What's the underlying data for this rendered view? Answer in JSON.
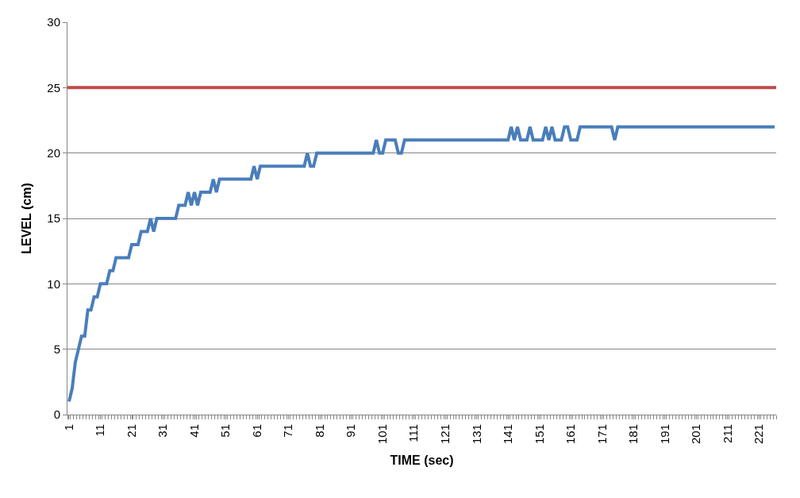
{
  "chart_data": {
    "type": "line",
    "xlabel": "TIME (sec)",
    "ylabel": "LEVEL (cm)",
    "categories": [
      "1",
      null,
      null,
      null,
      null,
      null,
      null,
      null,
      null,
      null,
      "11",
      null,
      null,
      null,
      null,
      null,
      null,
      null,
      null,
      null,
      "21",
      null,
      null,
      null,
      null,
      null,
      null,
      null,
      null,
      null,
      "31",
      null,
      null,
      null,
      null,
      null,
      null,
      null,
      null,
      null,
      "41",
      null,
      null,
      null,
      null,
      null,
      null,
      null,
      null,
      null,
      "51",
      null,
      null,
      null,
      null,
      null,
      null,
      null,
      null,
      null,
      "61",
      null,
      null,
      null,
      null,
      null,
      null,
      null,
      null,
      null,
      "71",
      null,
      null,
      null,
      null,
      null,
      null,
      null,
      null,
      null,
      "81",
      null,
      null,
      null,
      null,
      null,
      null,
      null,
      null,
      null,
      "91",
      null,
      null,
      null,
      null,
      null,
      null,
      null,
      null,
      null,
      "101",
      null,
      null,
      null,
      null,
      null,
      null,
      null,
      null,
      null,
      "111",
      null,
      null,
      null,
      null,
      null,
      null,
      null,
      null,
      null,
      "121",
      null,
      null,
      null,
      null,
      null,
      null,
      null,
      null,
      null,
      "131",
      null,
      null,
      null,
      null,
      null,
      null,
      null,
      null,
      null,
      "141",
      null,
      null,
      null,
      null,
      null,
      null,
      null,
      null,
      null,
      "151",
      null,
      null,
      null,
      null,
      null,
      null,
      null,
      null,
      null,
      "161",
      null,
      null,
      null,
      null,
      null,
      null,
      null,
      null,
      null,
      "171",
      null,
      null,
      null,
      null,
      null,
      null,
      null,
      null,
      null,
      "181",
      null,
      null,
      null,
      null,
      null,
      null,
      null,
      null,
      null,
      "191",
      null,
      null,
      null,
      null,
      null,
      null,
      null,
      null,
      null,
      "201",
      null,
      null,
      null,
      null,
      null,
      null,
      null,
      null,
      null,
      "211",
      null,
      null,
      null,
      null,
      null,
      null,
      null,
      null,
      null,
      "221",
      null,
      null,
      null,
      null,
      null
    ],
    "series": [
      {
        "color": "#4a7ebb",
        "values": [
          1,
          2,
          4,
          5,
          6,
          6,
          8,
          8,
          9,
          9,
          10,
          10,
          10,
          11,
          11,
          12,
          12,
          12,
          12,
          12,
          13,
          13,
          13,
          14,
          14,
          14,
          15,
          14,
          15,
          15,
          15,
          15,
          15,
          15,
          15,
          16,
          16,
          16,
          17,
          16,
          17,
          16,
          17,
          17,
          17,
          17,
          18,
          17,
          18,
          18,
          18,
          18,
          18,
          18,
          18,
          18,
          18,
          18,
          18,
          19,
          18,
          19,
          19,
          19,
          19,
          19,
          19,
          19,
          19,
          19,
          19,
          19,
          19,
          19,
          19,
          19,
          20,
          19,
          19,
          20,
          20,
          20,
          20,
          20,
          20,
          20,
          20,
          20,
          20,
          20,
          20,
          20,
          20,
          20,
          20,
          20,
          20,
          20,
          21,
          20,
          20,
          21,
          21,
          21,
          21,
          20,
          20,
          21,
          21,
          21,
          21,
          21,
          21,
          21,
          21,
          21,
          21,
          21,
          21,
          21,
          21,
          21,
          21,
          21,
          21,
          21,
          21,
          21,
          21,
          21,
          21,
          21,
          21,
          21,
          21,
          21,
          21,
          21,
          21,
          21,
          21,
          22,
          21,
          22,
          21,
          21,
          21,
          22,
          21,
          21,
          21,
          21,
          22,
          21,
          22,
          21,
          21,
          21,
          22,
          22,
          21,
          21,
          21,
          22,
          22,
          22,
          22,
          22,
          22,
          22,
          22,
          22,
          22,
          22,
          21,
          22,
          22,
          22,
          22,
          22,
          22,
          22,
          22,
          22,
          22,
          22,
          22,
          22,
          22,
          22,
          22,
          22,
          22,
          22,
          22,
          22,
          22,
          22,
          22,
          22,
          22,
          22,
          22,
          22,
          22,
          22,
          22,
          22,
          22,
          22,
          22,
          22,
          22,
          22,
          22,
          22,
          22,
          22,
          22,
          22,
          22,
          22,
          22,
          22,
          22,
          22
        ]
      }
    ],
    "ref_lines": [
      {
        "axis": "y",
        "value": 25,
        "color": "#be4b48"
      }
    ],
    "ylim": [
      0,
      30
    ],
    "yticks": [
      0,
      5,
      10,
      15,
      20,
      25,
      30
    ],
    "grid": "y",
    "line_style": "solid",
    "marker": "none"
  }
}
